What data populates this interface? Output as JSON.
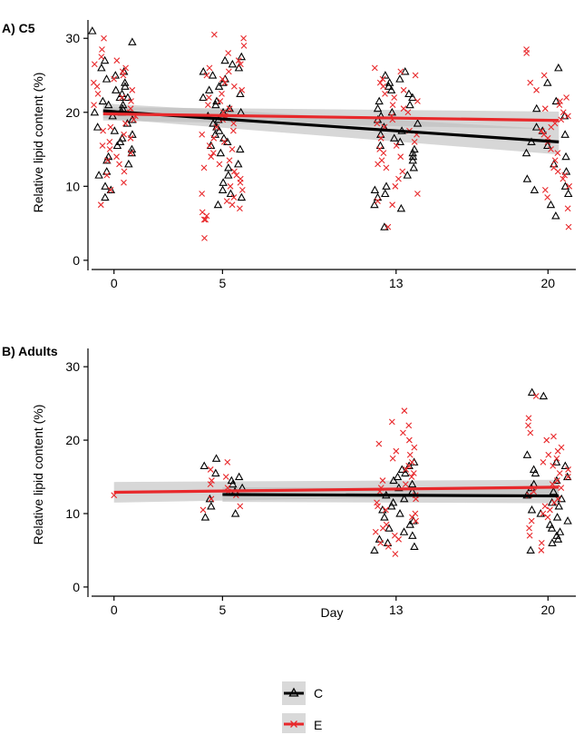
{
  "figure": {
    "xlabel": "Day",
    "legend_position": "bottom",
    "series_colors": {
      "C": "#000000",
      "E": "#e8282b"
    },
    "band_color": "#c8c8c8"
  },
  "legend": {
    "items": [
      {
        "name": "C",
        "color": "#000000",
        "marker": "triangle"
      },
      {
        "name": "E",
        "color": "#e8282b",
        "marker": "cross"
      }
    ]
  },
  "chart_data": [
    {
      "type": "scatter",
      "title": "A) C5",
      "xlabel": "",
      "ylabel": "Relative lipid content (%)",
      "x_ticks": [
        0,
        5,
        13,
        20
      ],
      "y_ticks": [
        0,
        10,
        20,
        30
      ],
      "xlim": [
        -1.2,
        21.2
      ],
      "ylim": [
        -1,
        31.5
      ],
      "grid": false,
      "jitter_half_width_days": 1.0,
      "series": [
        {
          "name": "C",
          "marker": "triangle",
          "color": "#000000",
          "groups": [
            {
              "x": 0,
              "y": [
                31,
                29.5,
                27,
                26,
                25.5,
                25,
                24.5,
                24,
                23.5,
                23,
                22.5,
                22,
                22,
                21.5,
                21,
                21,
                20.5,
                20,
                20,
                19.5,
                19,
                18.5,
                18,
                17.5,
                17,
                16.5,
                16,
                15.5,
                15,
                14.5,
                14,
                13.5,
                13,
                12,
                11.5,
                10,
                9.5,
                8.5
              ]
            },
            {
              "x": 5,
              "y": [
                27.5,
                27,
                26.5,
                26,
                25.5,
                25,
                24.5,
                24,
                23.5,
                23,
                22.5,
                22,
                21.5,
                21,
                20.5,
                20,
                20,
                19.5,
                19,
                18.5,
                18,
                17.5,
                17,
                16.5,
                16,
                15.5,
                15,
                14.5,
                13,
                12.5,
                11.5,
                10.5,
                9.5,
                9,
                8.5,
                7.5
              ]
            },
            {
              "x": 13,
              "y": [
                25.5,
                25,
                24.5,
                24,
                23.5,
                23,
                22.5,
                22,
                21.5,
                21,
                20.5,
                20,
                19.5,
                19,
                18.5,
                18,
                17.5,
                17,
                16.5,
                16,
                15.5,
                15,
                14.5,
                14,
                13.5,
                12.5,
                11.5,
                10,
                9.5,
                9,
                8.5,
                7.5,
                7,
                4.5
              ]
            },
            {
              "x": 20,
              "y": [
                26,
                24,
                21.5,
                20.5,
                19.5,
                18,
                17.5,
                17,
                16,
                15.5,
                14.5,
                14,
                13,
                12,
                11,
                10,
                9.5,
                9,
                7.5,
                6
              ]
            }
          ],
          "trend": {
            "x": [
              -0.5,
              20.5
            ],
            "y": [
              20.2,
              16
            ],
            "band_lo": [
              19.2,
              14.3
            ],
            "band_hi": [
              21.2,
              17.7
            ]
          }
        },
        {
          "name": "E",
          "marker": "cross",
          "color": "#e8282b",
          "groups": [
            {
              "x": 0,
              "y": [
                30,
                28.5,
                27.5,
                27,
                26.5,
                26,
                25.5,
                25,
                24.5,
                24,
                23.5,
                23,
                22.5,
                22,
                21.5,
                21,
                20.5,
                20,
                19.5,
                19,
                18.5,
                18,
                17.5,
                17,
                16.5,
                16,
                15.5,
                15,
                14.5,
                14,
                13.5,
                13,
                12,
                11.5,
                10.5,
                9.5,
                7.5
              ]
            },
            {
              "x": 5,
              "y": [
                30.5,
                30,
                29,
                28,
                27,
                26.5,
                26,
                25.5,
                25,
                24.5,
                24,
                23.5,
                23,
                22.5,
                22,
                21.5,
                21,
                20.5,
                20,
                19.5,
                19,
                18.5,
                18,
                17.5,
                17,
                16.5,
                16,
                15.5,
                15,
                14.5,
                14,
                13.5,
                13,
                12.5,
                12,
                11.5,
                11,
                10.5,
                10,
                9.5,
                9,
                8.5,
                8,
                7.5,
                7,
                6.5,
                6,
                5.5,
                5.5,
                3
              ]
            },
            {
              "x": 13,
              "y": [
                26,
                25.5,
                25,
                24.5,
                24,
                23.5,
                23,
                22.5,
                22,
                21.5,
                21,
                20.5,
                20,
                19.5,
                19,
                18.5,
                18,
                17.5,
                17,
                16.5,
                16,
                15.5,
                15,
                14.5,
                14,
                13.5,
                13,
                12.5,
                12,
                11,
                10,
                9,
                8,
                7.5,
                4.5
              ]
            },
            {
              "x": 20,
              "y": [
                28.5,
                28,
                25,
                24,
                23,
                22,
                21.5,
                21,
                20.5,
                20,
                19.5,
                19,
                18.5,
                18,
                17.5,
                17,
                16.5,
                16,
                15,
                14.5,
                13.5,
                12.5,
                12,
                11.5,
                11,
                10,
                9.5,
                8.5,
                7,
                4.5
              ]
            }
          ],
          "trend": {
            "x": [
              -0.5,
              20.5
            ],
            "y": [
              19.8,
              18.9
            ],
            "band_lo": [
              18.9,
              17.7
            ],
            "band_hi": [
              20.7,
              20.1
            ]
          }
        }
      ]
    },
    {
      "type": "scatter",
      "title": "B) Adults",
      "xlabel": "Day",
      "ylabel": "Relative lipid content (%)",
      "x_ticks": [
        0,
        5,
        13,
        20
      ],
      "y_ticks": [
        0,
        10,
        20,
        30
      ],
      "xlim": [
        -1.2,
        21.2
      ],
      "ylim": [
        -1,
        31.5
      ],
      "grid": false,
      "jitter_half_width_days": 1.0,
      "series": [
        {
          "name": "C",
          "marker": "triangle",
          "color": "#000000",
          "groups": [
            {
              "x": 5,
              "y": [
                17.5,
                16.5,
                15.5,
                15,
                14.5,
                14,
                13.5,
                13,
                12,
                11,
                10,
                9.5
              ]
            },
            {
              "x": 13,
              "y": [
                17,
                16.5,
                16,
                15.5,
                15,
                14.5,
                14,
                13.5,
                13,
                12.5,
                12,
                11.5,
                11,
                10.5,
                10,
                9.5,
                9,
                8.5,
                8,
                7.5,
                7,
                6.5,
                6,
                5.5,
                5
              ]
            },
            {
              "x": 20,
              "y": [
                26.5,
                26,
                18,
                17,
                16.5,
                16,
                15.5,
                15,
                14.5,
                14,
                13.5,
                13,
                12.5,
                12,
                11.5,
                11,
                10.5,
                10,
                9.5,
                9,
                8.5,
                8,
                7.5,
                7,
                6.5,
                6,
                5
              ]
            }
          ],
          "trend": {
            "x": [
              5,
              20.5
            ],
            "y": [
              12.6,
              12.4
            ],
            "band_lo": [
              11.6,
              11.4
            ],
            "band_hi": [
              13.6,
              13.4
            ]
          }
        },
        {
          "name": "E",
          "marker": "cross",
          "color": "#e8282b",
          "groups": [
            {
              "x": 0,
              "y": [
                12.5
              ]
            },
            {
              "x": 5,
              "y": [
                17,
                16,
                15,
                14.5,
                14,
                13.5,
                13,
                12.5,
                12,
                11,
                10.5
              ]
            },
            {
              "x": 13,
              "y": [
                24,
                22.5,
                22,
                21,
                20,
                19.5,
                19,
                18.5,
                18,
                17.5,
                17,
                16.5,
                16,
                15.5,
                15,
                14.5,
                14,
                13.5,
                13,
                12.5,
                12,
                11.5,
                11,
                10.5,
                10,
                9.5,
                9,
                8.5,
                8,
                7.5,
                7,
                6.5,
                6,
                5.5,
                4.5
              ]
            },
            {
              "x": 20,
              "y": [
                26,
                23,
                22,
                21,
                20.5,
                20,
                19,
                18.5,
                18,
                17.5,
                17,
                16.5,
                16,
                15.5,
                15,
                14.5,
                14,
                13.5,
                13,
                12.5,
                12,
                11.5,
                11,
                10.5,
                10,
                9.5,
                9,
                8,
                7,
                6,
                5
              ]
            }
          ],
          "trend": {
            "x": [
              0,
              20.5
            ],
            "y": [
              12.9,
              13.6
            ],
            "band_lo": [
              11.5,
              12.6
            ],
            "band_hi": [
              14.3,
              14.6
            ]
          }
        }
      ]
    }
  ]
}
